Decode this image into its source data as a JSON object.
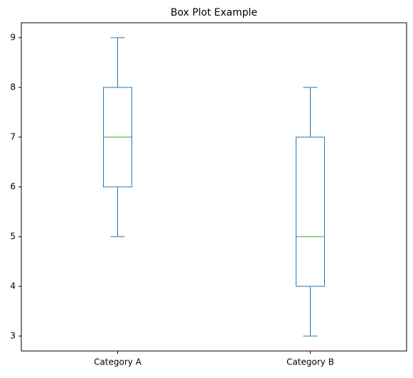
{
  "chart_data": {
    "type": "box",
    "title": "Box Plot Example",
    "categories": [
      "Category A",
      "Category B"
    ],
    "whisker_low": [
      5,
      3
    ],
    "q1": [
      6,
      4
    ],
    "median": [
      7,
      5
    ],
    "q3": [
      8,
      7
    ],
    "whisker_high": [
      9,
      8
    ],
    "color": "#1f77b4",
    "median_color": "#2ca02c",
    "ylim": [
      2.7,
      9.3
    ],
    "yticks": [
      3,
      4,
      5,
      6,
      7,
      8,
      9
    ],
    "grid": false
  }
}
